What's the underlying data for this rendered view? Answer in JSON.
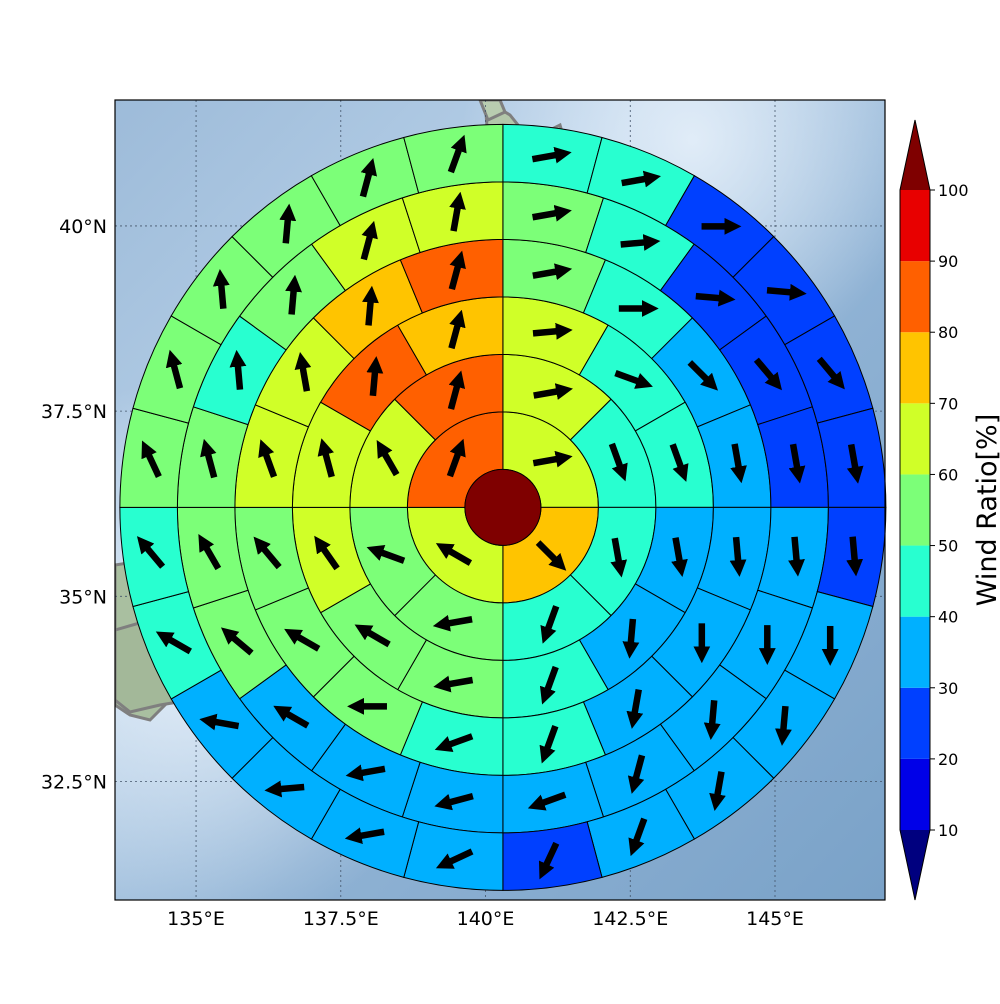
{
  "map": {
    "lat_labels": [
      {
        "value": 40.0,
        "label": "40°N"
      },
      {
        "value": 37.5,
        "label": "37.5°N"
      },
      {
        "value": 35.0,
        "label": "35°N"
      },
      {
        "value": 32.5,
        "label": "32.5°N"
      }
    ],
    "lon_labels": [
      {
        "value": 135.0,
        "label": "135°E"
      },
      {
        "value": 137.5,
        "label": "137.5°E"
      },
      {
        "value": 140.0,
        "label": "140°E"
      },
      {
        "value": 142.5,
        "label": "142.5°E"
      },
      {
        "value": 145.0,
        "label": "145°E"
      }
    ],
    "extent": {
      "lon": [
        133.6,
        146.9
      ],
      "lat": [
        30.9,
        41.7
      ]
    },
    "center": {
      "lon": 140.3,
      "lat": 36.2
    }
  },
  "colorbar": {
    "label": "Wind Ratio[%]",
    "ticks": [
      "10",
      "20",
      "30",
      "40",
      "50",
      "60",
      "70",
      "80",
      "90",
      "100"
    ],
    "levels": [
      0,
      10,
      20,
      30,
      40,
      50,
      60,
      70,
      80,
      90,
      100,
      110
    ],
    "colors": [
      "#00007f",
      "#0000e8",
      "#0040ff",
      "#00b0ff",
      "#28ffd0",
      "#7cff78",
      "#d0ff28",
      "#ffc400",
      "#ff6000",
      "#e80000",
      "#7f0000"
    ]
  },
  "chart_data": {
    "type": "polar-sector-map",
    "center_value": 100,
    "rings": [
      {
        "ring": 1,
        "sectors": 4,
        "values": [
          60,
          70,
          60,
          80
        ],
        "arrows_deg": [
          80,
          135,
          300,
          20
        ]
      },
      {
        "ring": 2,
        "sectors": 8,
        "values": [
          60,
          40,
          40,
          40,
          50,
          50,
          60,
          80
        ],
        "arrows_deg": [
          80,
          160,
          170,
          200,
          260,
          290,
          330,
          15
        ]
      },
      {
        "ring": 3,
        "sectors": 12,
        "values": [
          60,
          40,
          40,
          30,
          30,
          40,
          50,
          50,
          60,
          60,
          80,
          70
        ],
        "arrows_deg": [
          85,
          110,
          160,
          170,
          185,
          200,
          260,
          300,
          325,
          345,
          5,
          15
        ]
      },
      {
        "ring": 4,
        "sectors": 16,
        "values": [
          50,
          40,
          30,
          30,
          30,
          30,
          30,
          40,
          40,
          50,
          50,
          50,
          60,
          60,
          70,
          80
        ],
        "arrows_deg": [
          80,
          90,
          135,
          170,
          175,
          180,
          190,
          200,
          250,
          270,
          300,
          320,
          340,
          350,
          5,
          15
        ]
      },
      {
        "ring": 5,
        "sectors": 20,
        "values": [
          50,
          40,
          20,
          20,
          20,
          30,
          30,
          30,
          30,
          30,
          30,
          30,
          30,
          50,
          50,
          50,
          40,
          50,
          60,
          60
        ],
        "arrows_deg": [
          80,
          85,
          95,
          140,
          170,
          175,
          180,
          185,
          195,
          250,
          255,
          260,
          300,
          310,
          330,
          345,
          355,
          5,
          15,
          10
        ]
      },
      {
        "ring": 6,
        "sectors": 24,
        "values": [
          40,
          40,
          20,
          20,
          20,
          20,
          20,
          30,
          30,
          30,
          30,
          20,
          30,
          30,
          30,
          30,
          40,
          40,
          50,
          50,
          50,
          50,
          50,
          50
        ],
        "arrows_deg": [
          80,
          80,
          90,
          95,
          140,
          170,
          175,
          180,
          185,
          190,
          200,
          205,
          245,
          260,
          265,
          280,
          300,
          320,
          335,
          345,
          355,
          5,
          15,
          20
        ]
      }
    ]
  }
}
